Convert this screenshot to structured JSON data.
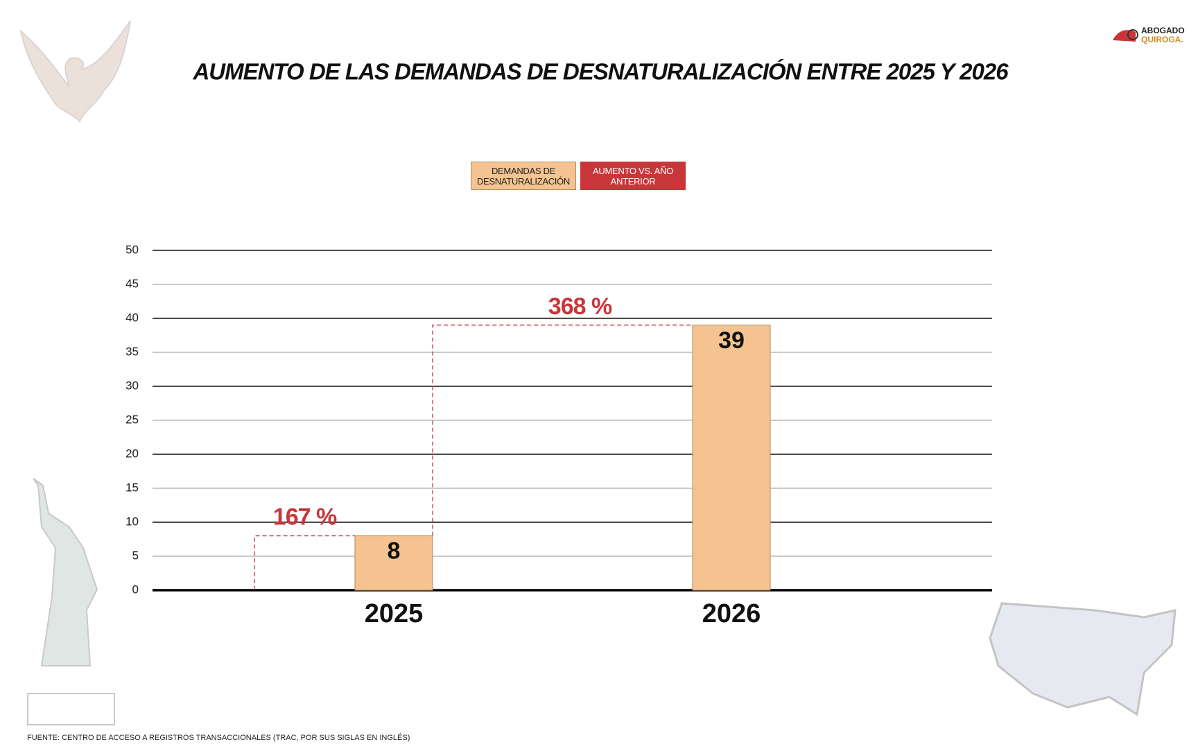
{
  "chart_data": {
    "type": "bar",
    "title": "AUMENTO DE LAS DEMANDAS DE DESNATURALIZACIÓN ENTRE 2025 Y 2026",
    "categories": [
      "2025",
      "2026"
    ],
    "series": [
      {
        "name": "DEMANDAS DE DESNATURALIZACIÓN",
        "color": "#f4c38f",
        "values": [
          8,
          39
        ]
      },
      {
        "name": "AUMENTO VS. AÑO ANTERIOR",
        "color": "#c8363a",
        "values": [
          167,
          368
        ],
        "value_labels": [
          "167 %",
          "368 %"
        ]
      }
    ],
    "ylim": [
      0,
      50
    ],
    "yticks": [
      0,
      5,
      10,
      15,
      20,
      25,
      30,
      35,
      40,
      45,
      50
    ],
    "grid": true,
    "legend": "top",
    "source": "FUENTE: CENTRO DE ACCESO A REGISTROS TRANSACCIONALES (TRAC, POR SUS SIGLAS EN INGLÉS)"
  },
  "branding": [
    "ABOGADO",
    "QUIROGA."
  ]
}
